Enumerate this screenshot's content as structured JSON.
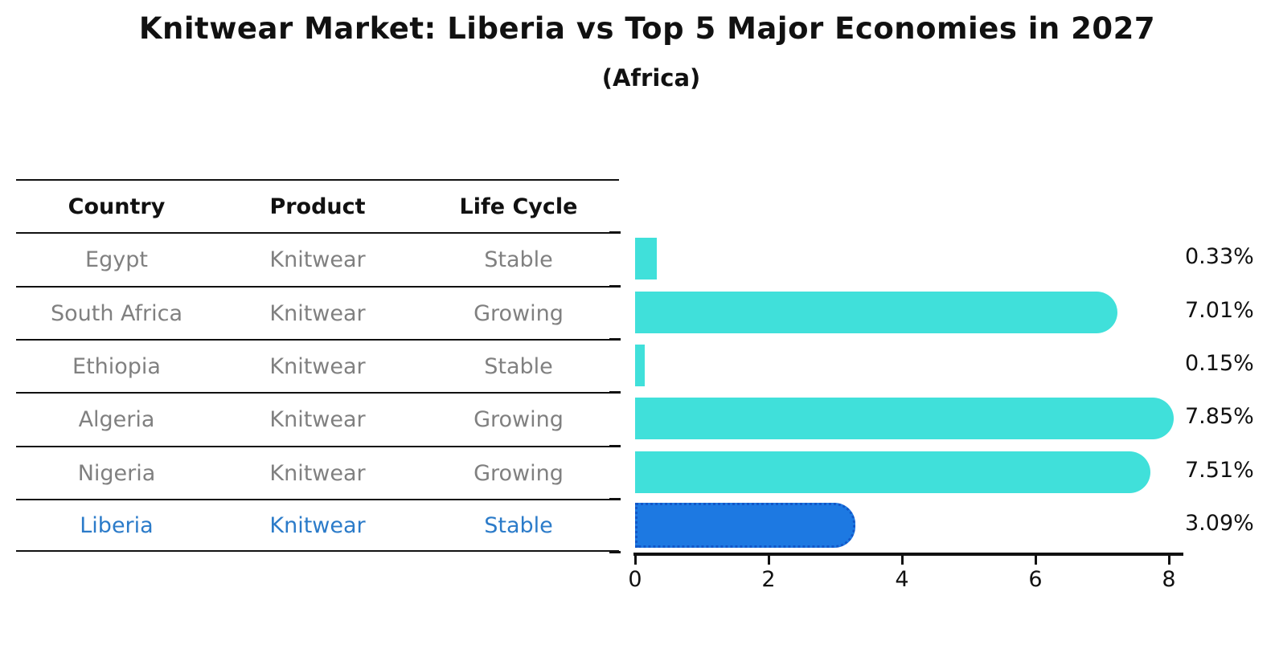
{
  "title": "Knitwear Market: Liberia vs Top 5 Major Economies in 2027",
  "subtitle": "(Africa)",
  "table": {
    "headers": [
      "Country",
      "Product",
      "Life Cycle"
    ],
    "rows": [
      {
        "country": "Egypt",
        "product": "Knitwear",
        "life_cycle": "Stable"
      },
      {
        "country": "South Africa",
        "product": "Knitwear",
        "life_cycle": "Growing"
      },
      {
        "country": "Ethiopia",
        "product": "Knitwear",
        "life_cycle": "Stable"
      },
      {
        "country": "Algeria",
        "product": "Knitwear",
        "life_cycle": "Growing"
      },
      {
        "country": "Nigeria",
        "product": "Knitwear",
        "life_cycle": "Growing"
      },
      {
        "country": "Liberia",
        "product": "Knitwear",
        "life_cycle": "Stable"
      }
    ]
  },
  "chart_data": {
    "type": "bar",
    "orientation": "horizontal",
    "title": "Knitwear Market: Liberia vs Top 5 Major Economies in 2027 (Africa)",
    "categories": [
      "Egypt",
      "South Africa",
      "Ethiopia",
      "Algeria",
      "Nigeria",
      "Liberia"
    ],
    "values": [
      0.33,
      7.01,
      0.15,
      7.85,
      7.51,
      3.09
    ],
    "value_labels": [
      "0.33%",
      "7.01%",
      "0.15%",
      "7.85%",
      "7.51%",
      "3.09%"
    ],
    "xlabel": "",
    "ylabel": "",
    "xlim": [
      0,
      8
    ],
    "xticks": [
      "0",
      "2",
      "4",
      "6",
      "8"
    ],
    "grid": false,
    "legend": false,
    "highlight_index": 5,
    "colors": {
      "bar": "#40E0DA",
      "highlight_bar": "#1d79e2",
      "highlight_border": "#1257c8",
      "row_text": "#808080",
      "highlight_text": "#2b7bc9",
      "axis": "#111111"
    }
  }
}
